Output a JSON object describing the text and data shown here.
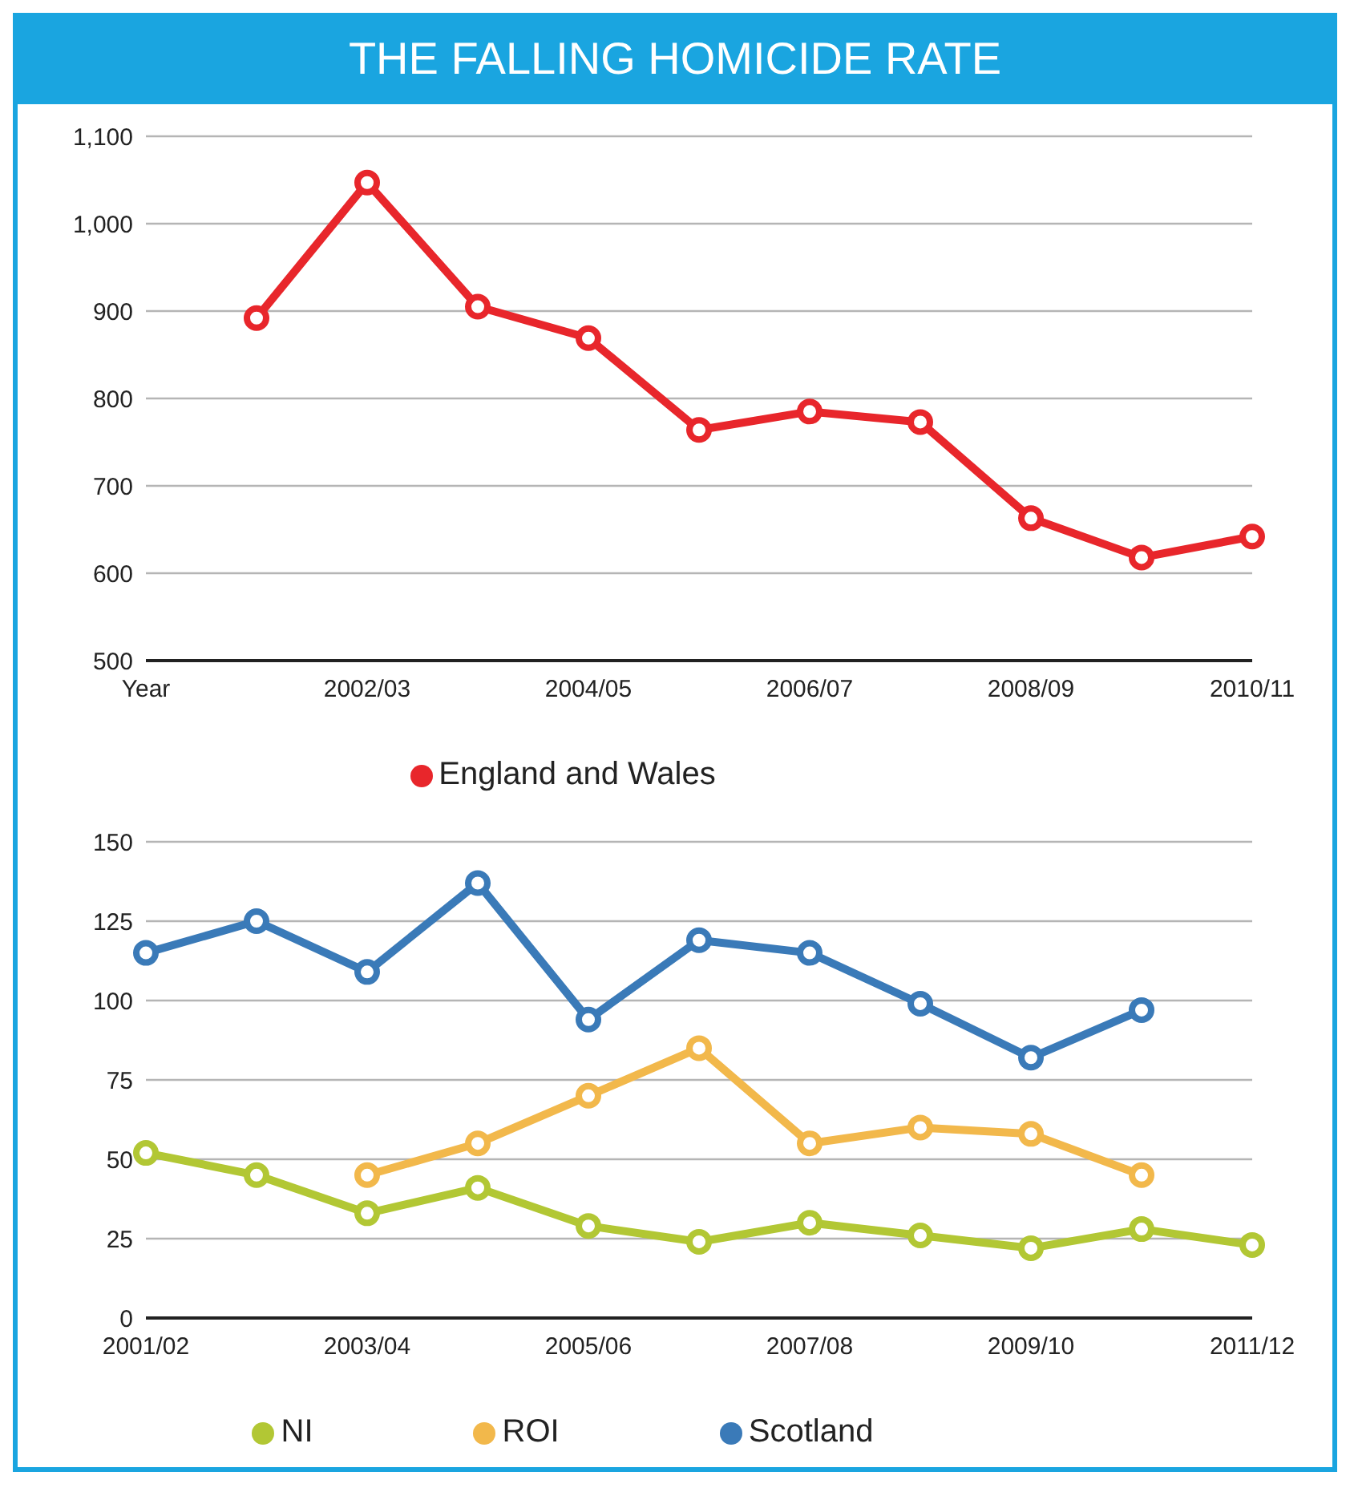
{
  "chart_data": [
    {
      "type": "line",
      "title": "THE FALLING HOMICIDE RATE",
      "categories": [
        "Year",
        null,
        "2002/03",
        null,
        "2004/05",
        null,
        "2006/07",
        null,
        "2008/09",
        null,
        "2010/11"
      ],
      "series": [
        {
          "name": "England and Wales",
          "color": "#e8262b",
          "values": [
            null,
            892,
            1047,
            905,
            869,
            764,
            785,
            773,
            663,
            618,
            642
          ]
        }
      ],
      "ylim": [
        500,
        1100
      ],
      "yticks": [
        500,
        600,
        700,
        800,
        900,
        {
          "value": 1000,
          "label": "1,000"
        },
        {
          "value": 1100,
          "label": "1,100"
        }
      ],
      "grid": "y",
      "legend": "bottom",
      "marker": "circle",
      "line_style": "solid"
    },
    {
      "type": "line",
      "categories": [
        "2001/02",
        null,
        "2003/04",
        null,
        "2005/06",
        null,
        "2007/08",
        null,
        "2009/10",
        null,
        "2011/12"
      ],
      "series": [
        {
          "name": "NI",
          "color": "#b2c734",
          "values": [
            52,
            45,
            33,
            41,
            29,
            24,
            30,
            26,
            22,
            28,
            23
          ]
        },
        {
          "name": "Scotland",
          "color": "#3a7ab8",
          "values": [
            115,
            125,
            109,
            137,
            94,
            119,
            115,
            99,
            82,
            97,
            null
          ]
        },
        {
          "name": "ROI",
          "color": "#f2b84b",
          "values": [
            null,
            null,
            45,
            55,
            70,
            85,
            55,
            60,
            58,
            45,
            null
          ]
        }
      ],
      "ylim": [
        0,
        150
      ],
      "yticks": [
        0,
        25,
        50,
        75,
        100,
        125,
        150
      ],
      "grid": "y",
      "legend": "bottom",
      "marker": "circle",
      "line_style": "solid"
    }
  ]
}
